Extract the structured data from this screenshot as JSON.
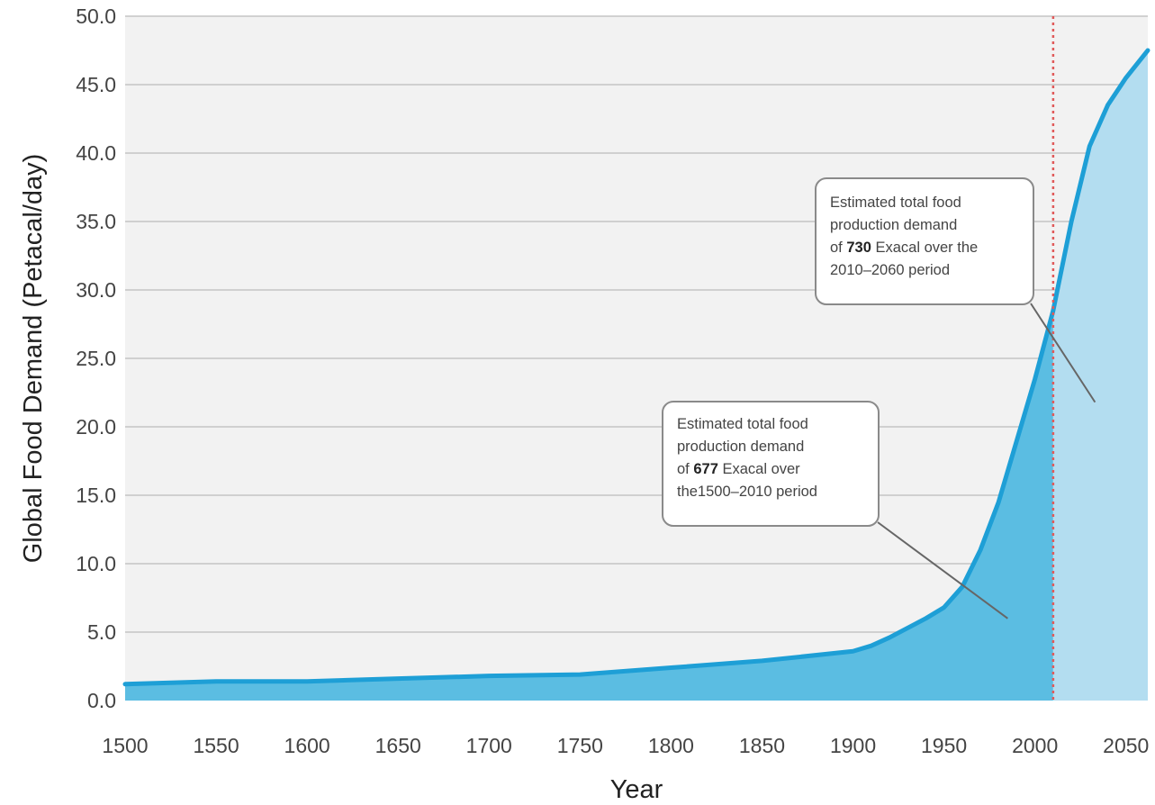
{
  "chart_data": {
    "type": "area",
    "title": "",
    "xlabel": "Year",
    "ylabel": "Global Food Demand (Petacal/day)",
    "xlim": [
      1500,
      2062
    ],
    "ylim": [
      0,
      50
    ],
    "x_ticks": [
      1500,
      1550,
      1600,
      1650,
      1700,
      1750,
      1800,
      1850,
      1900,
      1950,
      2000,
      2050
    ],
    "x_tick_labels": [
      "1500",
      "1550",
      "1600",
      "1650",
      "1700",
      "1750",
      "1800",
      "1850",
      "1900",
      "1950",
      "2000",
      "2050"
    ],
    "y_ticks": [
      0,
      5,
      10,
      15,
      20,
      25,
      30,
      35,
      40,
      45,
      50
    ],
    "y_tick_labels": [
      "0.0",
      "5.0",
      "10.0",
      "15.0",
      "20.0",
      "25.0",
      "30.0",
      "35.0",
      "40.0",
      "45.0",
      "50.0"
    ],
    "grid": true,
    "divider_year": 2010,
    "series": [
      {
        "x": [
          1500,
          1550,
          1600,
          1650,
          1700,
          1750,
          1800,
          1850,
          1900,
          1910,
          1920,
          1930,
          1940,
          1950,
          1960,
          1970,
          1980,
          1990,
          2000,
          2010,
          2020,
          2030,
          2040,
          2050,
          2062
        ],
        "values": [
          1.2,
          1.4,
          1.4,
          1.6,
          1.8,
          1.9,
          2.4,
          2.9,
          3.6,
          4.0,
          4.6,
          5.3,
          6.0,
          6.8,
          8.3,
          11.0,
          14.5,
          19.0,
          23.5,
          28.5,
          35.0,
          40.5,
          43.5,
          45.5,
          47.5
        ]
      }
    ],
    "annotations": [
      {
        "lines": [
          [
            {
              "t": "Estimated total food",
              "b": false
            }
          ],
          [
            {
              "t": "production demand",
              "b": false
            }
          ],
          [
            {
              "t": "of ",
              "b": false
            },
            {
              "t": "677",
              "b": true
            },
            {
              "t": " Exacal over",
              "b": false
            }
          ],
          [
            {
              "t": "the1500–2010 period",
              "b": false
            }
          ]
        ],
        "pointer_to": [
          1985,
          6
        ]
      },
      {
        "lines": [
          [
            {
              "t": "Estimated total food",
              "b": false
            }
          ],
          [
            {
              "t": "production demand",
              "b": false
            }
          ],
          [
            {
              "t": "of ",
              "b": false
            },
            {
              "t": "730",
              "b": true
            },
            {
              "t": " Exacal over the",
              "b": false
            }
          ],
          [
            {
              "t": "2010–2060 period",
              "b": false
            }
          ]
        ],
        "pointer_to": [
          2033,
          21.8
        ]
      }
    ],
    "colors": {
      "plot_background": "#f2f2f2",
      "grid": "#c4c4c4",
      "historical_fill": "#5bbde2",
      "projected_fill": "#b3ddf0",
      "line": "#1e9fd6",
      "divider": "#e05a5a",
      "callout_border": "#8a8a8a",
      "callout_fill": "#ffffff"
    }
  }
}
